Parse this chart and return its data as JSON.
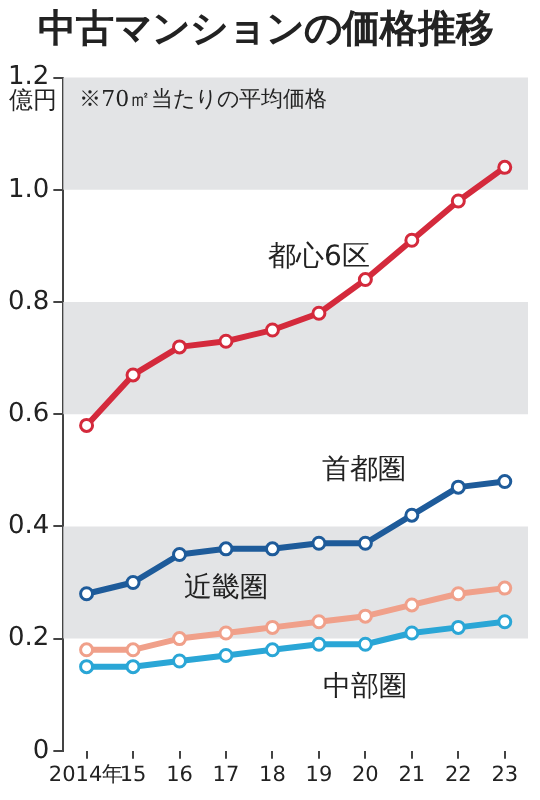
{
  "chart_data": {
    "type": "line",
    "title": "中古マンションの価格推移",
    "ylabel": "億円",
    "annotations": [
      "※70㎡当たりの平均価格"
    ],
    "categories": [
      "2014年",
      "15",
      "16",
      "17",
      "18",
      "19",
      "20",
      "21",
      "22",
      "23"
    ],
    "series": [
      {
        "name": "都心6区",
        "color": "#d42a3c",
        "values": [
          0.58,
          0.67,
          0.72,
          0.73,
          0.75,
          0.78,
          0.84,
          0.91,
          0.98,
          1.04
        ]
      },
      {
        "name": "首都圏",
        "color": "#1e5b9a",
        "values": [
          0.28,
          0.3,
          0.35,
          0.36,
          0.36,
          0.37,
          0.37,
          0.42,
          0.47,
          0.48
        ]
      },
      {
        "name": "近畿圏",
        "color": "#f0a08a",
        "values": [
          0.18,
          0.18,
          0.2,
          0.21,
          0.22,
          0.23,
          0.24,
          0.26,
          0.28,
          0.29
        ]
      },
      {
        "name": "中部圏",
        "color": "#2aa6d6",
        "values": [
          0.15,
          0.15,
          0.16,
          0.17,
          0.18,
          0.19,
          0.19,
          0.21,
          0.22,
          0.23
        ]
      }
    ],
    "ylim": [
      0,
      1.2
    ],
    "yticks": [
      0,
      0.2,
      0.4,
      0.6,
      0.8,
      {
        "value": 1,
        "label": "1.0"
      },
      1.2
    ],
    "bands": [
      {
        "axis": "y",
        "from": 0.2,
        "to": 0.4,
        "color": "#e3e4e6"
      },
      {
        "axis": "y",
        "from": 0.6,
        "to": 0.8,
        "color": "#e3e4e6"
      },
      {
        "axis": "y",
        "from": 1,
        "to": 1.2,
        "color": "#e3e4e6"
      }
    ],
    "grid": false,
    "legend": false,
    "marker": "circle",
    "line_style": "solid"
  }
}
